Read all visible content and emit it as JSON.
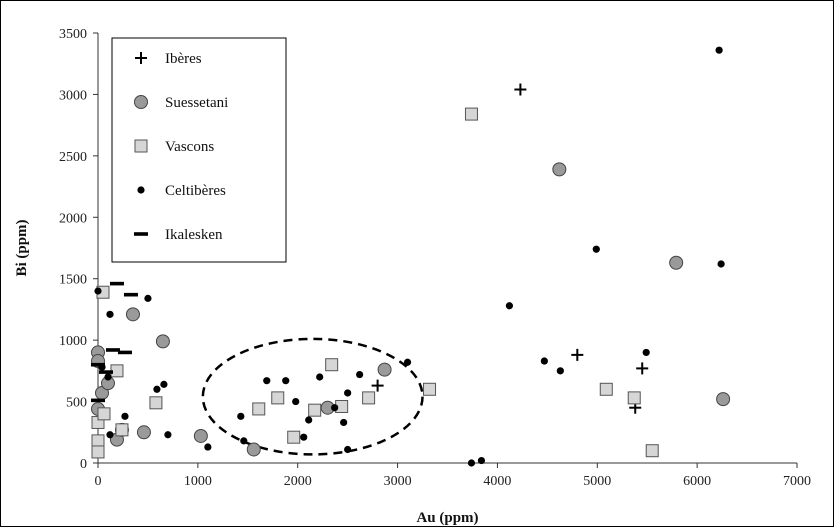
{
  "chart_data": {
    "type": "scatter",
    "xlabel": "Au (ppm)",
    "ylabel": "Bi (ppm)",
    "xlim": [
      0,
      7000
    ],
    "ylim": [
      0,
      3500
    ],
    "xticks": [
      0,
      1000,
      2000,
      3000,
      4000,
      5000,
      6000,
      7000
    ],
    "yticks": [
      0,
      500,
      1000,
      1500,
      2000,
      2500,
      3000,
      3500
    ],
    "grid": false,
    "legend_position": "top-left",
    "colors": {
      "marker_gray": "#9a9a9a",
      "square_fill": "#d6d6d6",
      "ink": "#000000"
    },
    "annotation": {
      "shape": "dashed-ellipse",
      "center": [
        2150,
        540
      ],
      "radius": [
        1100,
        470
      ]
    },
    "series": [
      {
        "name": "Ibères",
        "marker": "plus",
        "points": [
          [
            4230,
            3040
          ],
          [
            2800,
            630
          ],
          [
            4800,
            880
          ],
          [
            5450,
            770
          ],
          [
            5380,
            450
          ]
        ]
      },
      {
        "name": "Suessetani",
        "marker": "circle",
        "points": [
          [
            0,
            900
          ],
          [
            0,
            830
          ],
          [
            40,
            570
          ],
          [
            0,
            440
          ],
          [
            100,
            650
          ],
          [
            350,
            1210
          ],
          [
            650,
            990
          ],
          [
            190,
            190
          ],
          [
            240,
            270
          ],
          [
            460,
            250
          ],
          [
            1030,
            220
          ],
          [
            1560,
            110
          ],
          [
            2300,
            450
          ],
          [
            2870,
            760
          ],
          [
            4620,
            2390
          ],
          [
            5790,
            1630
          ],
          [
            6260,
            520
          ]
        ]
      },
      {
        "name": "Vascons",
        "marker": "square",
        "points": [
          [
            50,
            1390
          ],
          [
            0,
            330
          ],
          [
            0,
            180
          ],
          [
            0,
            90
          ],
          [
            190,
            750
          ],
          [
            60,
            400
          ],
          [
            240,
            270
          ],
          [
            580,
            490
          ],
          [
            1610,
            440
          ],
          [
            1800,
            530
          ],
          [
            1960,
            210
          ],
          [
            2170,
            430
          ],
          [
            2340,
            800
          ],
          [
            2440,
            460
          ],
          [
            2710,
            530
          ],
          [
            3320,
            600
          ],
          [
            3740,
            2840
          ],
          [
            5090,
            600
          ],
          [
            5370,
            530
          ],
          [
            5550,
            100
          ]
        ]
      },
      {
        "name": "Celtibères",
        "marker": "dot",
        "points": [
          [
            0,
            1400
          ],
          [
            120,
            1210
          ],
          [
            500,
            1340
          ],
          [
            100,
            700
          ],
          [
            40,
            780
          ],
          [
            590,
            600
          ],
          [
            660,
            640
          ],
          [
            270,
            380
          ],
          [
            120,
            230
          ],
          [
            700,
            230
          ],
          [
            1100,
            130
          ],
          [
            1430,
            380
          ],
          [
            1460,
            180
          ],
          [
            1690,
            670
          ],
          [
            1880,
            670
          ],
          [
            1980,
            500
          ],
          [
            2060,
            210
          ],
          [
            2110,
            350
          ],
          [
            2220,
            700
          ],
          [
            2370,
            450
          ],
          [
            2460,
            330
          ],
          [
            2500,
            570
          ],
          [
            2620,
            720
          ],
          [
            2500,
            110
          ],
          [
            3100,
            820
          ],
          [
            3740,
            0
          ],
          [
            3840,
            20
          ],
          [
            4120,
            1280
          ],
          [
            4470,
            830
          ],
          [
            4630,
            750
          ],
          [
            4990,
            1740
          ],
          [
            5490,
            900
          ],
          [
            6220,
            3360
          ],
          [
            6240,
            1620
          ]
        ]
      },
      {
        "name": "Ikalesken",
        "marker": "dash",
        "points": [
          [
            190,
            1460
          ],
          [
            330,
            1370
          ],
          [
            150,
            920
          ],
          [
            270,
            900
          ],
          [
            0,
            800
          ],
          [
            80,
            740
          ],
          [
            0,
            510
          ]
        ]
      }
    ]
  }
}
